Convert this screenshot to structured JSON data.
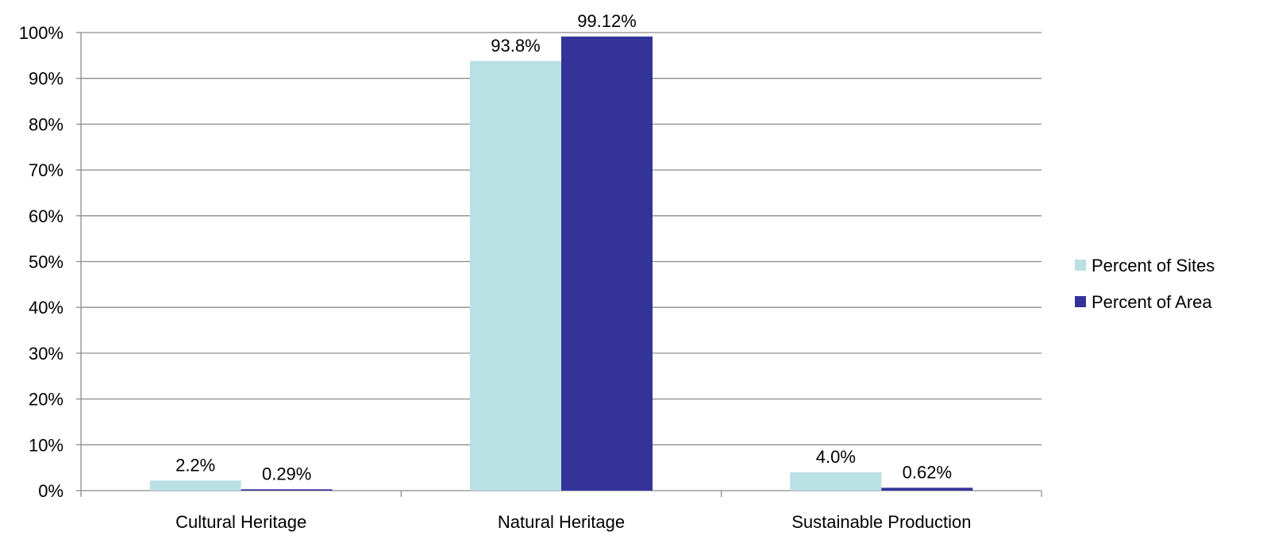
{
  "chart_data": {
    "type": "bar",
    "title": "",
    "xlabel": "",
    "ylabel": "",
    "categories": [
      "Cultural Heritage",
      "Natural Heritage",
      "Sustainable Production"
    ],
    "series": [
      {
        "name": "Percent of Sites",
        "color": "#b9e0e3",
        "values": [
          2.2,
          93.8,
          4.0
        ],
        "labels": [
          "2.2%",
          "93.8%",
          "4.0%"
        ]
      },
      {
        "name": "Percent of Area",
        "color": "#333399",
        "values": [
          0.29,
          99.12,
          0.62
        ],
        "labels": [
          "0.29%",
          "99.12%",
          "0.62%"
        ]
      }
    ],
    "ylim": [
      0,
      100
    ],
    "yticks": [
      "0%",
      "10%",
      "20%",
      "30%",
      "40%",
      "50%",
      "60%",
      "70%",
      "80%",
      "90%",
      "100%"
    ],
    "grid": true,
    "gridline_color": "#8c8c8c",
    "legend_position": "right"
  }
}
